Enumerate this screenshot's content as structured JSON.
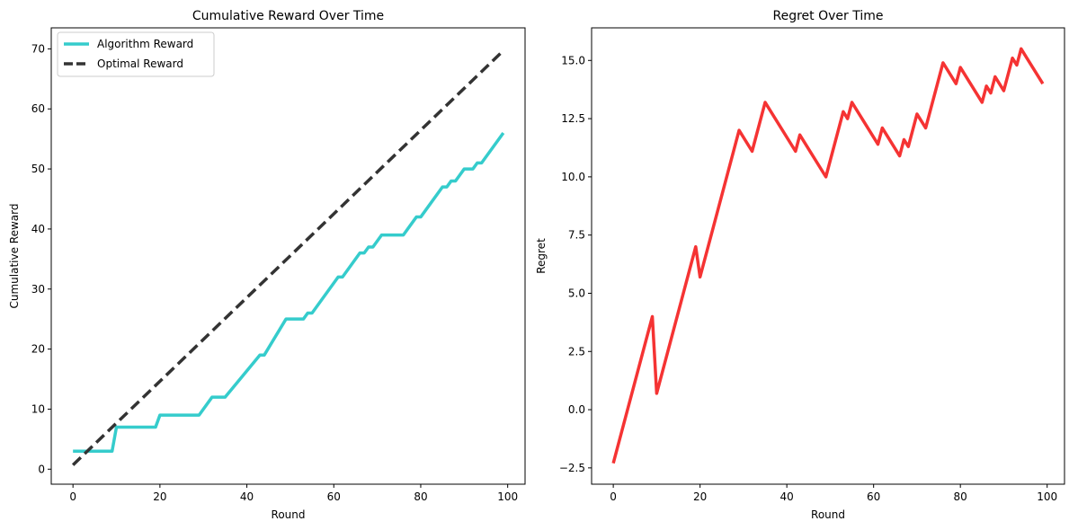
{
  "chart_data": [
    {
      "type": "line",
      "title": "Cumulative Reward Over Time",
      "xlabel": "Round",
      "ylabel": "Cumulative Reward",
      "xlim": [
        -5,
        104
      ],
      "ylim": [
        -2.5,
        73.5
      ],
      "xticks": [
        0,
        20,
        40,
        60,
        80,
        100
      ],
      "yticks": [
        0,
        10,
        20,
        30,
        40,
        50,
        60,
        70
      ],
      "grid": false,
      "legend": "top-left",
      "series": [
        {
          "name": "Algorithm Reward",
          "color": "#35cccc",
          "style": "solid",
          "x": [
            0,
            9,
            10,
            19,
            20,
            29,
            32,
            35,
            43,
            44,
            49,
            53,
            54,
            55,
            61,
            62,
            66,
            67,
            68,
            69,
            71,
            72,
            76,
            79,
            80,
            85,
            86,
            87,
            88,
            90,
            92,
            93,
            94,
            99
          ],
          "values": [
            3,
            3,
            7,
            7,
            9,
            9,
            12,
            12,
            19,
            19,
            25,
            25,
            26,
            26,
            32,
            32,
            36,
            36,
            37,
            37,
            39,
            39,
            39,
            42,
            42,
            47,
            47,
            48,
            48,
            50,
            50,
            51,
            51,
            56
          ]
        },
        {
          "name": "Optimal Reward",
          "color": "#333333",
          "style": "dashed",
          "x": [
            0,
            99
          ],
          "values": [
            0.7,
            69.7
          ]
        }
      ]
    },
    {
      "type": "line",
      "title": "Regret Over Time",
      "xlabel": "Round",
      "ylabel": "Regret",
      "xlim": [
        -5,
        104
      ],
      "ylim": [
        -3.2,
        16.4
      ],
      "xticks": [
        0,
        20,
        40,
        60,
        80,
        100
      ],
      "yticks": [
        -2.5,
        0.0,
        2.5,
        5.0,
        7.5,
        10.0,
        12.5,
        15.0
      ],
      "ytick_labels": [
        "−2.5",
        "0.0",
        "2.5",
        "5.0",
        "7.5",
        "10.0",
        "12.5",
        "15.0"
      ],
      "grid": false,
      "series": [
        {
          "color": "#f53333",
          "style": "solid",
          "x": [
            0,
            9,
            10,
            19,
            20,
            29,
            32,
            35,
            42,
            43,
            49,
            53,
            54,
            55,
            61,
            62,
            66,
            67,
            68,
            70,
            72,
            76,
            79,
            80,
            85,
            86,
            87,
            88,
            90,
            92,
            93,
            94,
            99
          ],
          "values": [
            -2.3,
            4.0,
            0.7,
            7.0,
            5.7,
            12.0,
            11.1,
            13.2,
            11.1,
            11.8,
            10.0,
            12.8,
            12.5,
            13.2,
            11.4,
            12.1,
            10.9,
            11.6,
            11.3,
            12.7,
            12.1,
            14.9,
            14.0,
            14.7,
            13.2,
            13.9,
            13.6,
            14.3,
            13.7,
            15.1,
            14.8,
            15.5,
            14.0
          ]
        }
      ]
    }
  ]
}
